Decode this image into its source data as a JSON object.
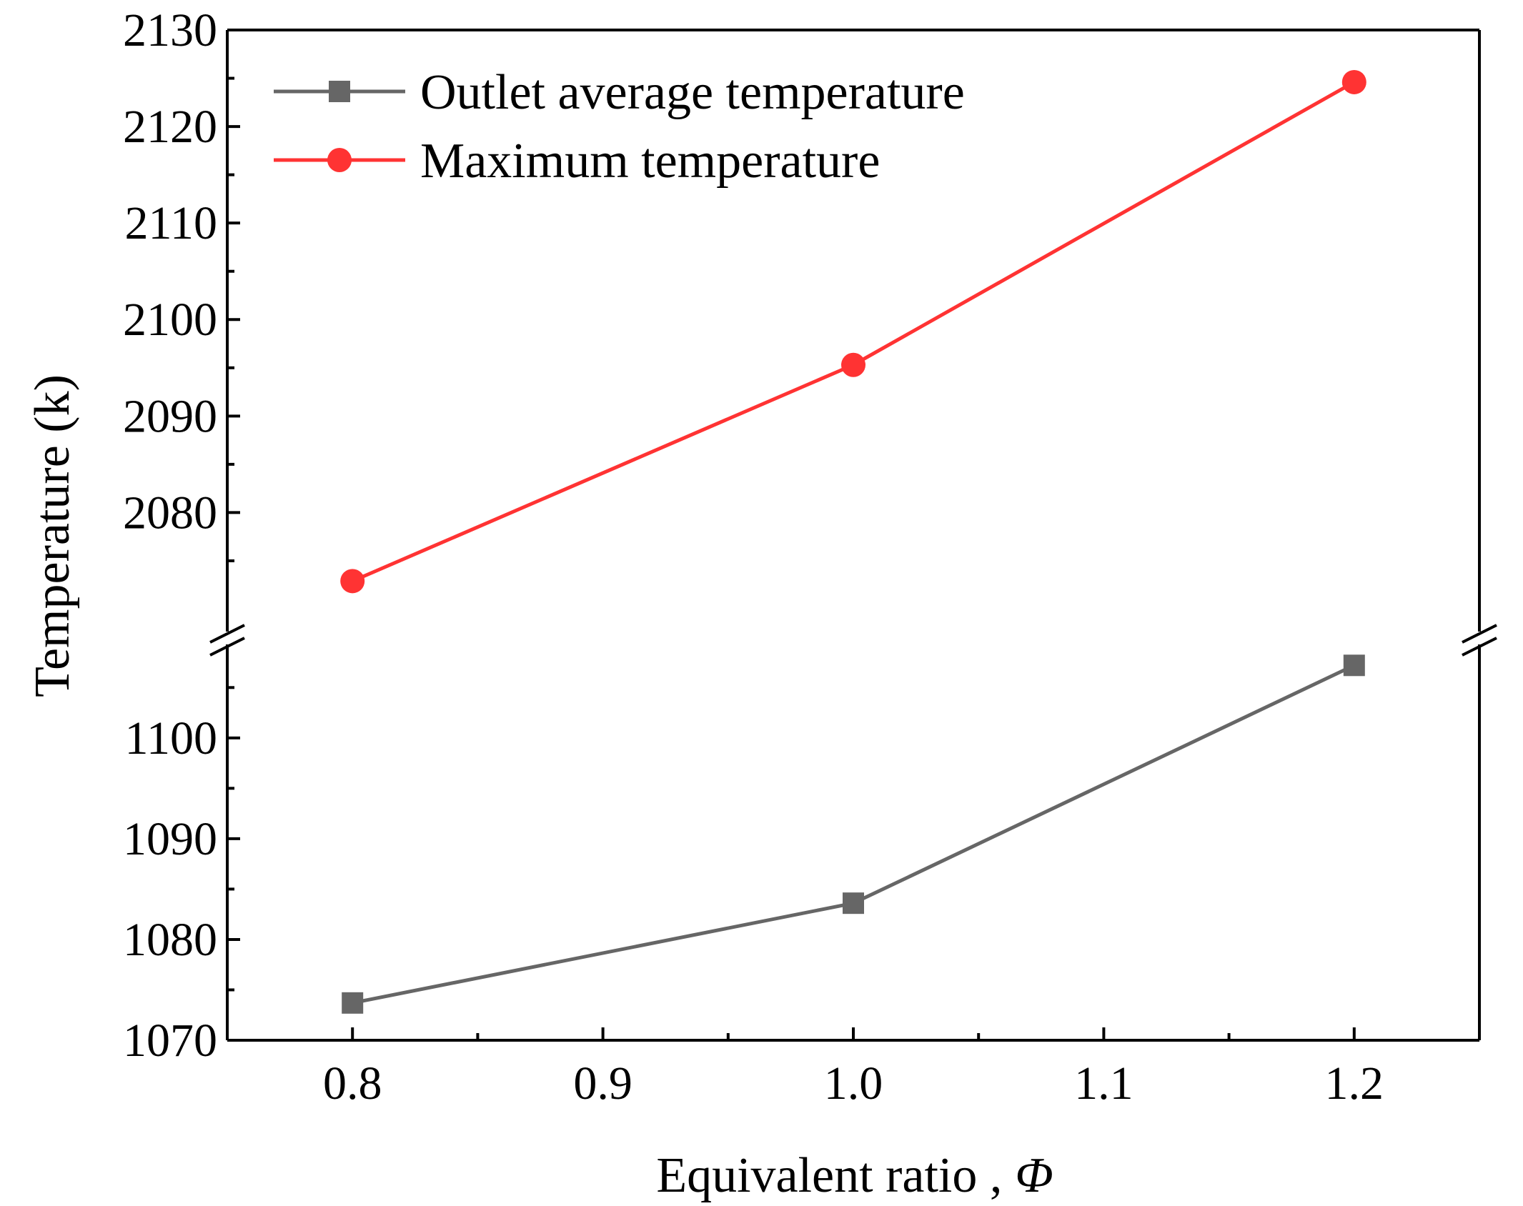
{
  "chart_data": {
    "type": "line",
    "title": "",
    "xlabel": "Equivalent ratio ,",
    "xlabel_symbol": "Φ",
    "ylabel": "Temperature (k)",
    "x": [
      0.8,
      1.0,
      1.2
    ],
    "xlim": [
      0.75,
      1.25
    ],
    "x_ticks": [
      "0.8",
      "0.9",
      "1.0",
      "1.1",
      "1.2"
    ],
    "x_tick_values": [
      0.8,
      0.9,
      1.0,
      1.1,
      1.2
    ],
    "y_axis_broken": true,
    "y_segments": [
      {
        "name": "lower",
        "range": [
          1070,
          1108
        ],
        "ticks": [
          1070,
          1080,
          1090,
          1100
        ],
        "tick_labels": [
          "1070",
          "1080",
          "1090",
          "1100"
        ]
      },
      {
        "name": "upper",
        "range": [
          2069,
          2130
        ],
        "ticks": [
          2080,
          2090,
          2100,
          2110,
          2120,
          2130
        ],
        "tick_labels": [
          "2080",
          "2090",
          "2100",
          "2110",
          "2120",
          "2130"
        ]
      }
    ],
    "series": [
      {
        "name": "Outlet average temperature",
        "values": [
          1073.7,
          1083.6,
          1107.2
        ],
        "color": "#666666",
        "marker": "square",
        "segment": "lower"
      },
      {
        "name": "Maximum temperature",
        "values": [
          2072.9,
          2095.3,
          2124.6
        ],
        "color": "#ff3333",
        "marker": "circle",
        "segment": "upper"
      }
    ],
    "legend_position": "top-left",
    "grid": false
  }
}
